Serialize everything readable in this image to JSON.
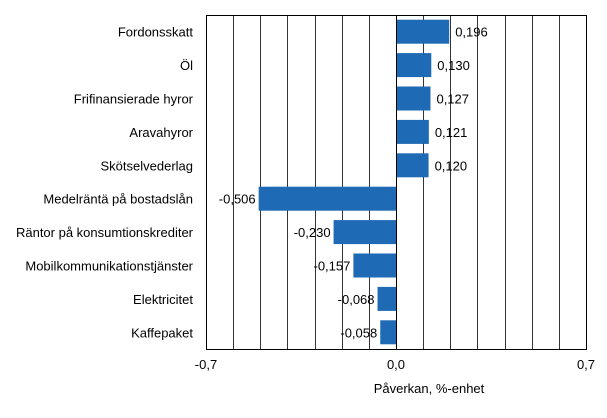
{
  "chart_data": {
    "type": "bar",
    "orientation": "horizontal",
    "categories": [
      "Fordonsskatt",
      "Öl",
      "Frifinansierade hyror",
      "Aravahyror",
      "Skötselvederlag",
      "Medelräntä på bostadslån",
      "Räntor på konsumtionskrediter",
      "Mobilkommunikationstjänster",
      "Elektricitet",
      "Kaffepaket"
    ],
    "values": [
      0.196,
      0.13,
      0.127,
      0.121,
      0.12,
      -0.506,
      -0.23,
      -0.157,
      -0.068,
      -0.058
    ],
    "value_labels": [
      "0,196",
      "0,130",
      "0,127",
      "0,121",
      "0,120",
      "-0,506",
      "-0,230",
      "-0,157",
      "-0,068",
      "-0,058"
    ],
    "xlim": [
      -0.7,
      0.7
    ],
    "x_ticks": [
      -0.7,
      0.0,
      0.7
    ],
    "x_tick_labels": [
      "-0,7",
      "0,0",
      "0,7"
    ],
    "xlabel": "Påverkan, %-enhet",
    "grid": "vertical",
    "grid_step": 0.1,
    "bar_color": "#1f6ab4",
    "legend": "none"
  }
}
